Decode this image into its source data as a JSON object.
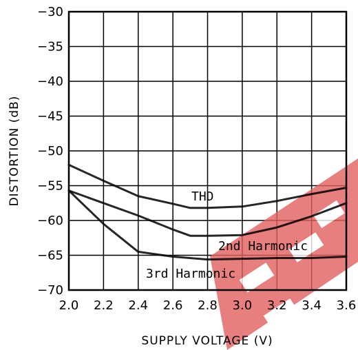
{
  "chart_data": {
    "type": "line",
    "xlabel": "SUPPLY VOLTAGE (V)",
    "ylabel": "DISTORTION (dB)",
    "xlim": [
      2.0,
      3.6
    ],
    "ylim": [
      -70,
      -30
    ],
    "x_ticks": [
      "2.0",
      "2.2",
      "2.4",
      "2.6",
      "2.8",
      "3.0",
      "3.2",
      "3.4",
      "3.6"
    ],
    "y_ticks": [
      "−30",
      "−35",
      "−40",
      "−45",
      "−50",
      "−55",
      "−60",
      "−65",
      "−70"
    ],
    "grid": true,
    "series": [
      {
        "name": "THD",
        "x": [
          2.0,
          2.2,
          2.4,
          2.6,
          2.7,
          2.8,
          3.0,
          3.2,
          3.4,
          3.6
        ],
        "values": [
          -52.0,
          -54.3,
          -56.5,
          -57.6,
          -58.2,
          -58.2,
          -58.0,
          -57.2,
          -56.2,
          -55.3
        ]
      },
      {
        "name": "2nd Harmonic",
        "x": [
          2.0,
          2.2,
          2.4,
          2.6,
          2.7,
          2.8,
          3.0,
          3.2,
          3.4,
          3.6
        ],
        "values": [
          -55.7,
          -57.5,
          -59.3,
          -61.3,
          -62.2,
          -62.2,
          -62.1,
          -61.0,
          -59.4,
          -57.5
        ]
      },
      {
        "name": "3rd Harmonic",
        "x": [
          2.0,
          2.2,
          2.4,
          2.6,
          2.8,
          3.0,
          3.2,
          3.4,
          3.6
        ],
        "values": [
          -55.7,
          -60.5,
          -64.5,
          -65.2,
          -65.6,
          -65.5,
          -65.4,
          -65.4,
          -65.2
        ]
      }
    ],
    "annotations": [
      "THD",
      "2nd Harmonic",
      "3rd Harmonic"
    ]
  }
}
